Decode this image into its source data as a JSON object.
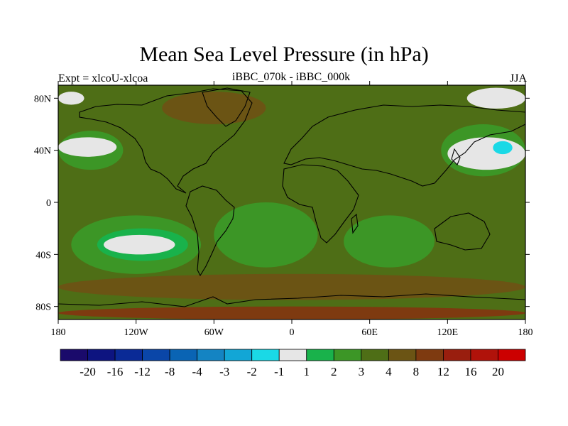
{
  "chart_data": {
    "type": "heatmap",
    "title": "Mean Sea Level Pressure (in hPa)",
    "subtitle_left": "Expt = xlcoU-xlcoa",
    "subtitle_center": "iBBC_070k - iBBC_000k",
    "subtitle_right": "JJA",
    "x_ticks": [
      "180",
      "120W",
      "60W",
      "0",
      "60E",
      "120E",
      "180"
    ],
    "x_tick_values": [
      -180,
      -120,
      -60,
      0,
      60,
      120,
      180
    ],
    "y_ticks": [
      "80N",
      "40N",
      "0",
      "40S",
      "80S"
    ],
    "y_tick_values": [
      80,
      40,
      0,
      -40,
      -80
    ],
    "xlim": [
      -180,
      180
    ],
    "ylim": [
      -90,
      90
    ],
    "colorbar": {
      "labels": [
        "-20",
        "-16",
        "-12",
        "-8",
        "-4",
        "-3",
        "-2",
        "-1",
        "1",
        "2",
        "3",
        "4",
        "8",
        "12",
        "16",
        "20"
      ],
      "colors": [
        "#1a0a6b",
        "#0d1480",
        "#0a2a96",
        "#0a46a8",
        "#0a64b4",
        "#1484c3",
        "#12a6d6",
        "#1ad9e6",
        "#e6e6e6",
        "#19b24b",
        "#3c9626",
        "#4e6e16",
        "#6b5414",
        "#7e3a10",
        "#991e0e",
        "#b0120a",
        "#cc0000"
      ]
    },
    "regions": [
      {
        "level": "3 to 4",
        "lon": [
          -180,
          180
        ],
        "lat": [
          -90,
          90
        ]
      },
      {
        "level": "4 to 8",
        "lon": [
          -100,
          -20
        ],
        "lat": [
          60,
          85
        ]
      },
      {
        "level": "4 to 8",
        "lon": [
          -180,
          180
        ],
        "lat": [
          -75,
          -55
        ]
      },
      {
        "level": "2 to 3",
        "lon": [
          -170,
          -70
        ],
        "lat": [
          -55,
          -10
        ]
      },
      {
        "level": "1 to 2",
        "lon": [
          -150,
          -80
        ],
        "lat": [
          -45,
          -20
        ]
      },
      {
        "level": "-1 to 1",
        "lon": [
          -145,
          -90
        ],
        "lat": [
          -40,
          -25
        ]
      },
      {
        "level": "2 to 3",
        "lon": [
          -180,
          -130
        ],
        "lat": [
          25,
          55
        ]
      },
      {
        "level": "-1 to 1",
        "lon": [
          -180,
          -135
        ],
        "lat": [
          35,
          50
        ]
      },
      {
        "level": "2 to 3",
        "lon": [
          -60,
          20
        ],
        "lat": [
          -50,
          0
        ]
      },
      {
        "level": "2 to 3",
        "lon": [
          40,
          110
        ],
        "lat": [
          -50,
          -10
        ]
      },
      {
        "level": "2 to 3",
        "lon": [
          115,
          180
        ],
        "lat": [
          20,
          60
        ]
      },
      {
        "level": "-1 to 1",
        "lon": [
          120,
          180
        ],
        "lat": [
          25,
          50
        ]
      },
      {
        "level": "-2 to -1",
        "lon": [
          155,
          170
        ],
        "lat": [
          37,
          47
        ]
      },
      {
        "level": "-1 to 1",
        "lon": [
          135,
          180
        ],
        "lat": [
          72,
          88
        ]
      },
      {
        "level": "-1 to 1",
        "lon": [
          -180,
          -160
        ],
        "lat": [
          75,
          85
        ]
      },
      {
        "level": "8 to 12",
        "lon": [
          -180,
          180
        ],
        "lat": [
          -90,
          -80
        ]
      }
    ]
  }
}
